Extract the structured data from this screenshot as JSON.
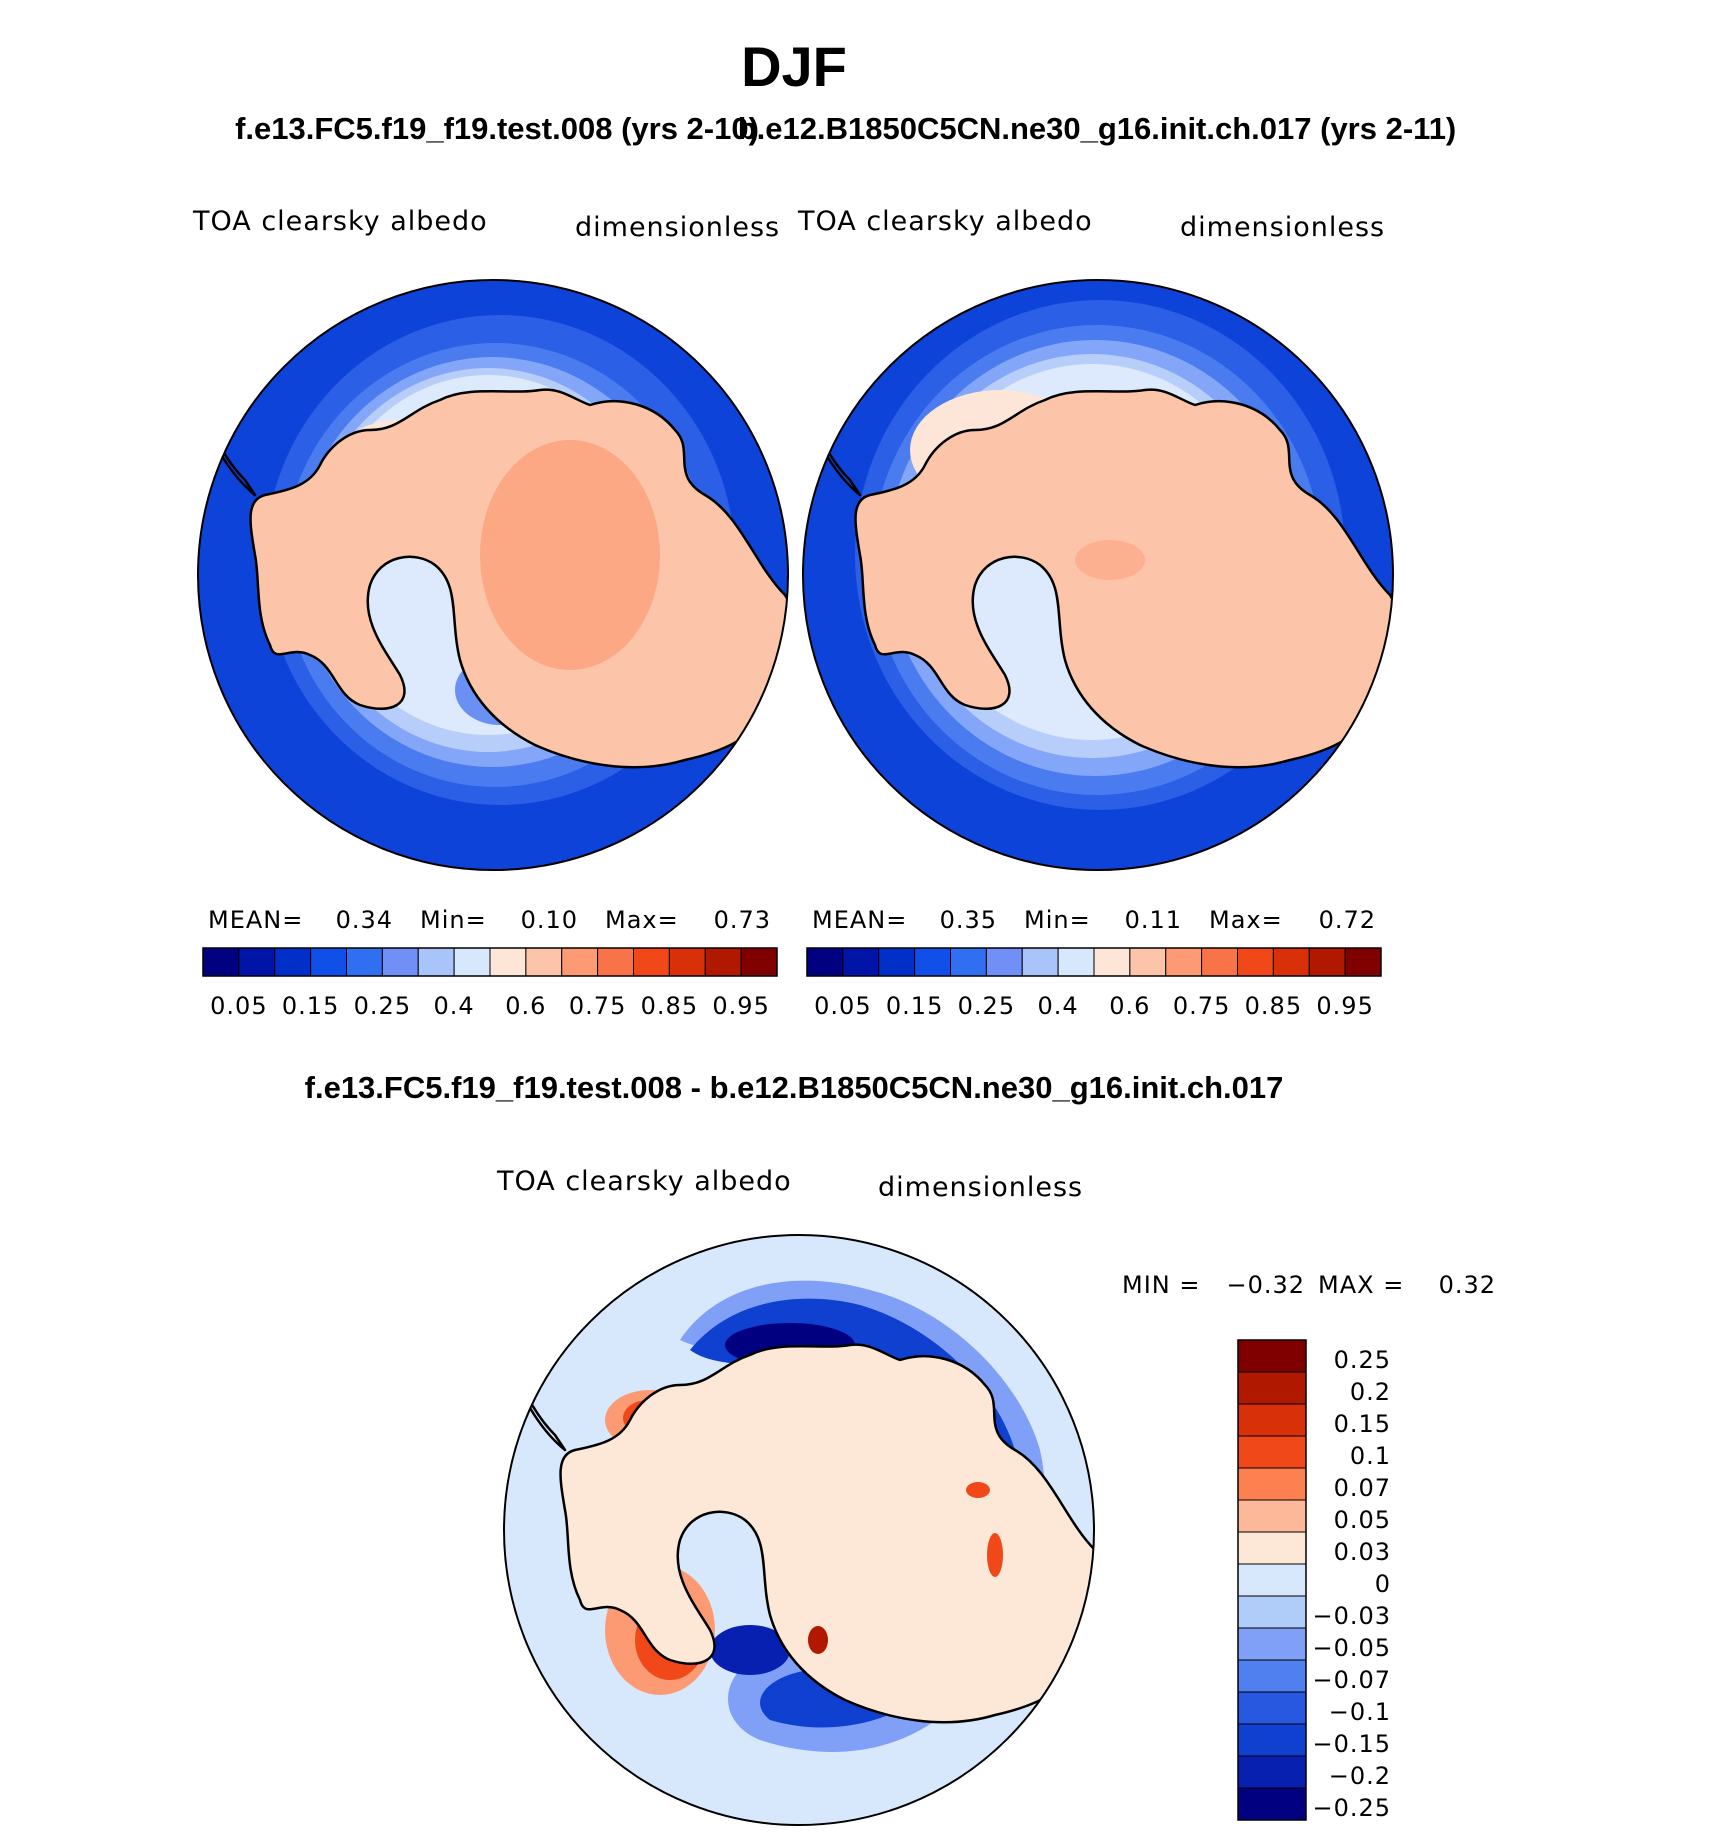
{
  "page": {
    "season_title": "DJF",
    "case1_label": "f.e13.FC5.f19_f19.test.008 (yrs 2-10)",
    "case2_label": "b.e12.B1850C5CN.ne30_g16.init.ch.017 (yrs 2-11)",
    "diff_label": "f.e13.FC5.f19_f19.test.008 - b.e12.B1850C5CN.ne30_g16.init.ch.017"
  },
  "panels": [
    {
      "variable": "TOA clearsky albedo",
      "units": "dimensionless",
      "stats": {
        "mean_label": "MEAN=",
        "mean": "0.34",
        "min_label": "Min=",
        "min": "0.10",
        "max_label": "Max=",
        "max": "0.73"
      }
    },
    {
      "variable": "TOA clearsky albedo",
      "units": "dimensionless",
      "stats": {
        "mean_label": "MEAN=",
        "mean": "0.35",
        "min_label": "Min=",
        "min": "0.11",
        "max_label": "Max=",
        "max": "0.72"
      }
    },
    {
      "variable": "TOA clearsky albedo",
      "units": "dimensionless",
      "stats": {
        "min_label": "MIN =",
        "min": "−0.32",
        "max_label": "MAX =",
        "max": "0.32"
      }
    }
  ],
  "colorbars": {
    "abs": {
      "colors": [
        "#000080",
        "#0015a8",
        "#0030c8",
        "#1050e8",
        "#3070f0",
        "#7090f8",
        "#a8c4f8",
        "#d8e8fc",
        "#fde6d8",
        "#fcc4a8",
        "#fc9a74",
        "#f87448",
        "#f04818",
        "#d83008",
        "#b01800",
        "#800000"
      ],
      "tick_labels": [
        "0.05",
        "0.15",
        "0.25",
        "0.4",
        "0.6",
        "0.75",
        "0.85",
        "0.95"
      ]
    },
    "diff": {
      "colors_top_to_bottom": [
        "#800000",
        "#b01800",
        "#d83008",
        "#f04818",
        "#fc8050",
        "#fcb898",
        "#fde8d8",
        "#d8e8fc",
        "#b0ccf8",
        "#80a0f8",
        "#5080f0",
        "#2858e0",
        "#1040d0",
        "#0820b0",
        "#000080"
      ],
      "tick_labels": [
        "0.25",
        "0.2",
        "0.15",
        "0.1",
        "0.07",
        "0.05",
        "0.03",
        "0",
        "−0.03",
        "−0.05",
        "−0.07",
        "−0.1",
        "−0.15",
        "−0.2",
        "−0.25"
      ]
    }
  },
  "chart_data": [
    {
      "type": "heatmap",
      "title": "TOA clearsky albedo",
      "case": "f.e13.FC5.f19_f19.test.008 (yrs 2-10)",
      "units": "dimensionless",
      "projection": "south polar stereographic",
      "levels": [
        0.05,
        0.1,
        0.15,
        0.2,
        0.25,
        0.3,
        0.4,
        0.5,
        0.6,
        0.7,
        0.75,
        0.8,
        0.85,
        0.9,
        0.95
      ],
      "mean": 0.34,
      "min": 0.1,
      "max": 0.73
    },
    {
      "type": "heatmap",
      "title": "TOA clearsky albedo",
      "case": "b.e12.B1850C5CN.ne30_g16.init.ch.017 (yrs 2-11)",
      "units": "dimensionless",
      "projection": "south polar stereographic",
      "levels": [
        0.05,
        0.1,
        0.15,
        0.2,
        0.25,
        0.3,
        0.4,
        0.5,
        0.6,
        0.7,
        0.75,
        0.8,
        0.85,
        0.9,
        0.95
      ],
      "mean": 0.35,
      "min": 0.11,
      "max": 0.72
    },
    {
      "type": "heatmap",
      "title": "TOA clearsky albedo",
      "case": "f.e13.FC5.f19_f19.test.008 - b.e12.B1850C5CN.ne30_g16.init.ch.017",
      "units": "dimensionless",
      "projection": "south polar stereographic",
      "levels": [
        -0.25,
        -0.2,
        -0.15,
        -0.1,
        -0.07,
        -0.05,
        -0.03,
        0,
        0.03,
        0.05,
        0.07,
        0.1,
        0.15,
        0.2,
        0.25
      ],
      "min": -0.32,
      "max": 0.32
    }
  ]
}
